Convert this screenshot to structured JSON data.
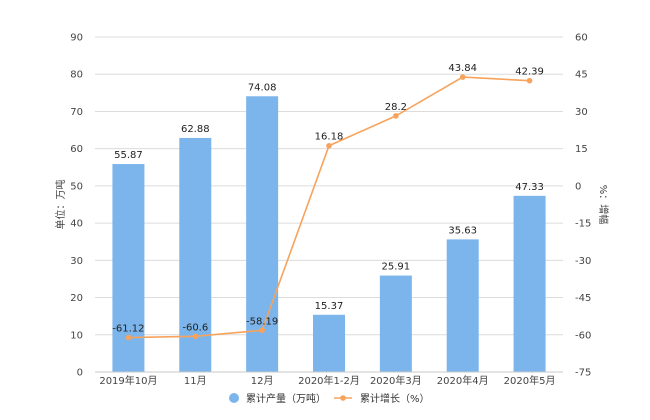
{
  "chart_data": {
    "type": "bar+line",
    "categories": [
      "2019年10月",
      "11月",
      "12月",
      "2020年1-2月",
      "2020年3月",
      "2020年4月",
      "2020年5月"
    ],
    "series": [
      {
        "name": "累计产量（万吨）",
        "type": "bar",
        "axis": "left",
        "values": [
          55.87,
          62.88,
          74.08,
          15.37,
          25.91,
          35.63,
          47.33
        ]
      },
      {
        "name": "累计增长（%）",
        "type": "line",
        "axis": "right",
        "values": [
          -61.12,
          -60.6,
          -58.19,
          16.18,
          28.2,
          43.84,
          42.39
        ]
      }
    ],
    "series_labels": [
      [
        "55.87",
        "62.88",
        "74.08",
        "15.37",
        "25.91",
        "35.63",
        "47.33"
      ],
      [
        "-61.12",
        "-60.6",
        "-58.19",
        "16.18",
        "28.2",
        "43.84",
        "42.39"
      ]
    ],
    "ylabel": "单位：万吨",
    "ylabel_right": "%：增幅",
    "ylim": [
      0,
      90
    ],
    "yticks": [
      "0",
      "10",
      "20",
      "30",
      "40",
      "50",
      "60",
      "70",
      "80",
      "90"
    ],
    "ylim_right": [
      -75,
      60
    ],
    "yticks_right": [
      "-75",
      "-60",
      "-45",
      "-30",
      "-15",
      "0",
      "15",
      "30",
      "45",
      "60"
    ],
    "grid": true,
    "legend_position": "bottom",
    "colors": {
      "bar": "#7cb5ec",
      "line": "#f7a35c"
    }
  }
}
